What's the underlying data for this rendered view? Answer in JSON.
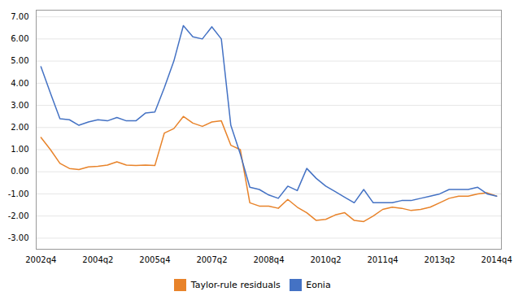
{
  "chart_data": {
    "type": "line",
    "categories": [
      "2002q4",
      null,
      null,
      null,
      null,
      null,
      "2004q2",
      null,
      null,
      null,
      null,
      null,
      "2005q4",
      null,
      null,
      null,
      null,
      null,
      "2007q2",
      null,
      null,
      null,
      null,
      null,
      "2008q4",
      null,
      null,
      null,
      null,
      null,
      "2010q2",
      null,
      null,
      null,
      null,
      null,
      "2011q4",
      null,
      null,
      null,
      null,
      null,
      "2013q2",
      null,
      null,
      null,
      null,
      null,
      "2014q4"
    ],
    "series": [
      {
        "name": "Taylor-rule residuals",
        "color": "#E8832A",
        "values": [
          1.55,
          1.0,
          0.38,
          0.15,
          0.1,
          0.22,
          0.25,
          0.3,
          0.45,
          0.3,
          0.28,
          0.3,
          0.28,
          1.75,
          1.95,
          2.5,
          2.2,
          2.05,
          2.25,
          2.3,
          1.2,
          1.0,
          -1.4,
          -1.55,
          -1.55,
          -1.65,
          -1.25,
          -1.6,
          -1.85,
          -2.2,
          -2.15,
          -1.95,
          -1.85,
          -2.2,
          -2.25,
          -2.0,
          -1.7,
          -1.6,
          -1.65,
          -1.75,
          -1.7,
          -1.6,
          -1.4,
          -1.2,
          -1.1,
          -1.1,
          -1.0,
          -0.95,
          -1.1
        ]
      },
      {
        "name": "Eonia",
        "color": "#4472C4",
        "values": [
          4.75,
          3.55,
          2.4,
          2.35,
          2.1,
          2.25,
          2.35,
          2.3,
          2.45,
          2.3,
          2.3,
          2.65,
          2.7,
          3.8,
          5.0,
          6.6,
          6.1,
          6.0,
          6.55,
          6.0,
          2.1,
          0.8,
          -0.7,
          -0.8,
          -1.05,
          -1.2,
          -0.65,
          -0.85,
          0.15,
          -0.3,
          -0.65,
          -0.9,
          -1.15,
          -1.4,
          -0.8,
          -1.4,
          -1.4,
          -1.4,
          -1.3,
          -1.3,
          -1.2,
          -1.1,
          -1.0,
          -0.8,
          -0.8,
          -0.8,
          -0.7,
          -1.0,
          -1.1
        ]
      }
    ],
    "ylim": [
      -3.5,
      7.3
    ],
    "yticks": [
      {
        "value": -3.0,
        "label": "-3.00"
      },
      {
        "value": -2.0,
        "label": "-2.00"
      },
      {
        "value": -1.0,
        "label": "-1.00"
      },
      {
        "value": 0.0,
        "label": "0.00"
      },
      {
        "value": 1.0,
        "label": "1.00"
      },
      {
        "value": 2.0,
        "label": "2.00"
      },
      {
        "value": 3.0,
        "label": "3.00"
      },
      {
        "value": 4.0,
        "label": "4.00"
      },
      {
        "value": 5.0,
        "label": "5.00"
      },
      {
        "value": 6.0,
        "label": "6.00"
      },
      {
        "value": 7.0,
        "label": "7.00"
      }
    ],
    "grid": true,
    "legend": "bottom"
  }
}
